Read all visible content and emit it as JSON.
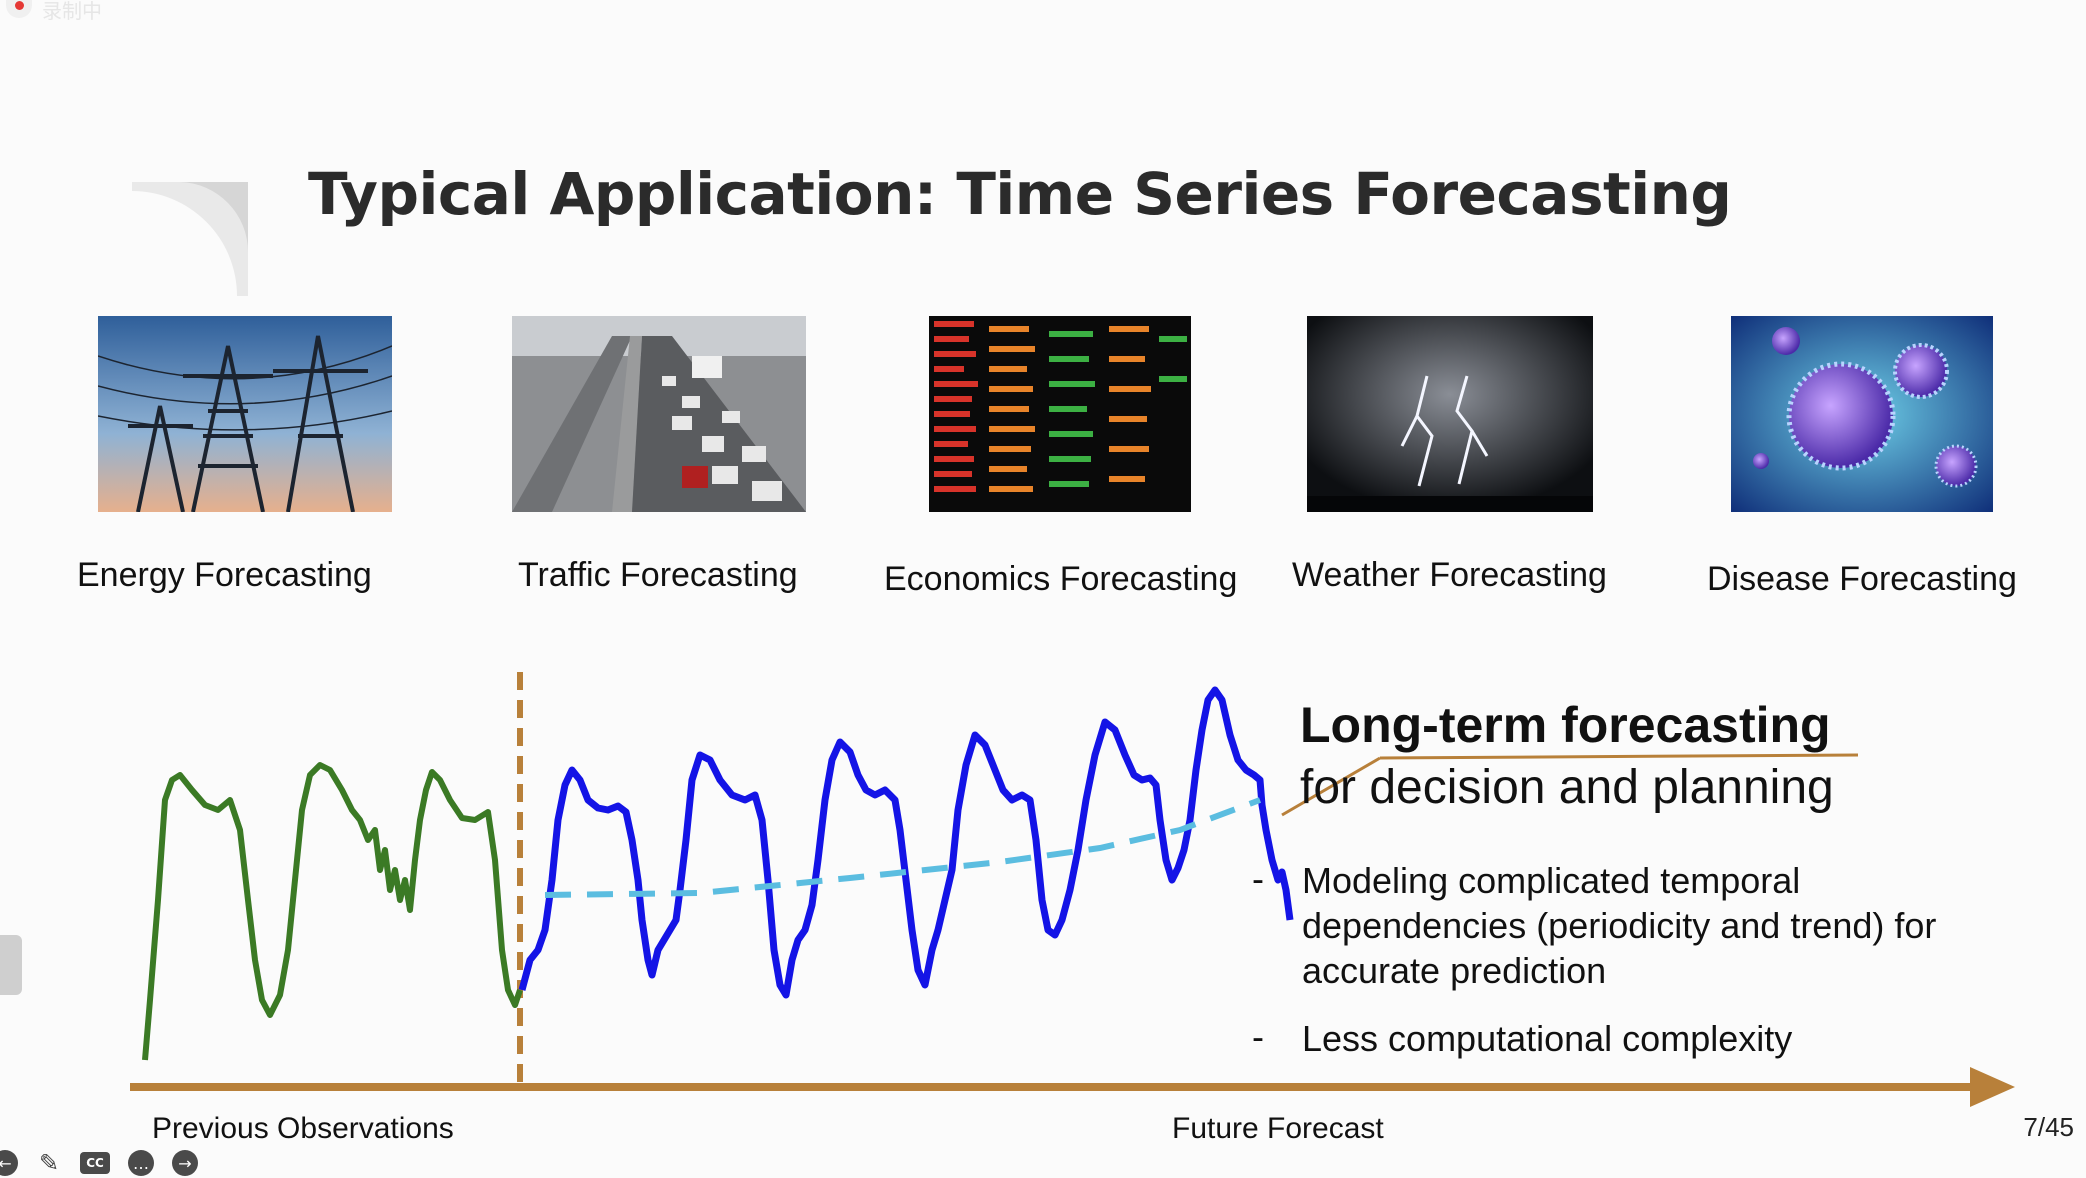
{
  "recording": {
    "label": "录制中"
  },
  "slide": {
    "title": "Typical Application: Time Series Forecasting",
    "page": "7/45"
  },
  "applications": [
    {
      "label": "Energy Forecasting",
      "icon": "power-tower-photo"
    },
    {
      "label": "Traffic Forecasting",
      "icon": "highway-traffic-photo"
    },
    {
      "label": "Economics Forecasting",
      "icon": "stock-board-photo"
    },
    {
      "label": "Weather Forecasting",
      "icon": "lightning-photo"
    },
    {
      "label": "Disease Forecasting",
      "icon": "virus-photo"
    }
  ],
  "forecast_panel": {
    "title": "Long-term forecasting",
    "subtitle": "for decision and planning",
    "bullets": [
      {
        "dash": "-",
        "text": "Modeling complicated temporal dependencies (periodicity and trend) for accurate prediction"
      },
      {
        "dash": "-",
        "text": "Less computational complexity"
      }
    ]
  },
  "axis": {
    "left_label": "Previous Observations",
    "right_label": "Future Forecast"
  },
  "colors": {
    "observed_line": "#3b7a25",
    "forecast_line": "#1414e6",
    "trend_line": "#5bbde0",
    "axis_arrow": "#b8803a",
    "divider": "#b8803a"
  },
  "toolbar": {
    "buttons": [
      "back-icon",
      "pen-icon",
      "cc-icon",
      "more-icon",
      "next-icon"
    ],
    "cc_label": "CC"
  }
}
